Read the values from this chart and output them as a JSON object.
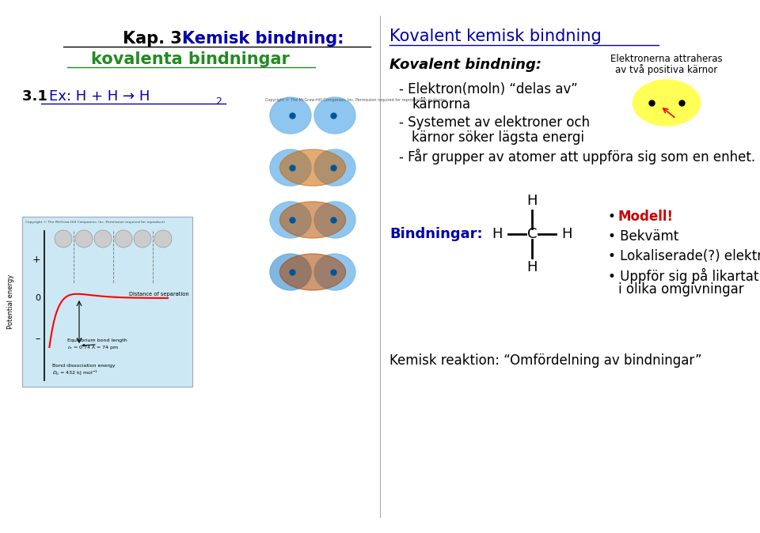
{
  "bg_color": "#ffffff",
  "colors": {
    "black": "#000000",
    "blue": "#0000cc",
    "red": "#cc0000",
    "title_blue": "#0000aa",
    "green2": "#228B22"
  },
  "left": {
    "title_black": "Kap. 3.  ",
    "title_blue": "Kemisk bindning:",
    "subtitle_green": "kovalenta bindningar",
    "sub2_black": "3.1  ",
    "sub2_blue": "Ex: H + H → H",
    "sub2_sub": "2"
  },
  "right": {
    "title": "Kovalent kemisk bindning",
    "bold_italic": "Kovalent bindning:",
    "b1a": "- Elektron(moln) “delas av”",
    "b1b": "kärnorna",
    "b2a": "- Systemet av elektroner och",
    "b2b": "kärnor söker lägsta energi",
    "b3": "- Får grupper av atomer att uppföra sig som en enhet.",
    "ann1": "Elektronerna attraheras",
    "ann2": "av två positiva kärnor",
    "bind_label": "Bindningar:",
    "bp_modell": "Modell!",
    "bp_bekvamt": "• Bekvämt",
    "bp_lokal": "• Lokaliserade(?) elektroner",
    "bp_uppfor1": "• Uppför sig på likartat sätt",
    "bp_uppfor2": "i olika omgivningar",
    "kemisk": "Kemisk reaktion: “Omfördelning av bindningar”"
  }
}
